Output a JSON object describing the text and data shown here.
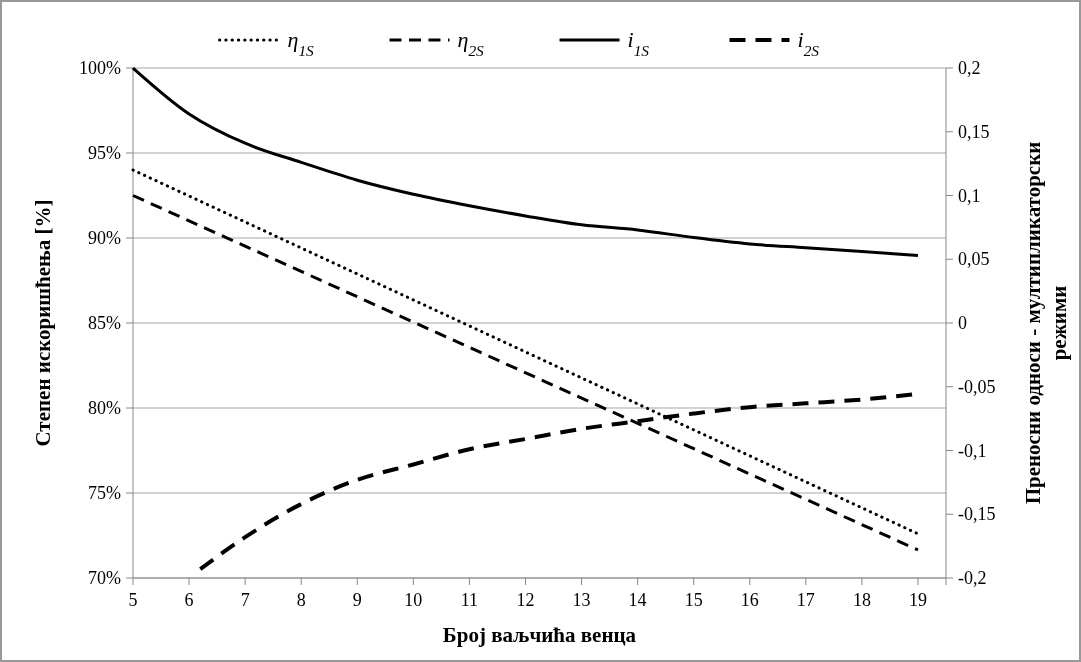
{
  "chart_data": {
    "type": "line",
    "xlabel": "Број ваљчића венца",
    "ylabel": "Степен искоришћења [%]",
    "y2label": "Преносни односи - мултипликаторски режими",
    "xlim": [
      5,
      19.5
    ],
    "xticks": [
      5,
      6,
      7,
      8,
      9,
      10,
      11,
      12,
      13,
      14,
      15,
      16,
      17,
      18,
      19,
      {
        "value": 19.5,
        "label": null
      }
    ],
    "ylim": [
      70,
      100
    ],
    "yticks": [
      {
        "value": 70,
        "label": "70%"
      },
      {
        "value": 75,
        "label": "75%"
      },
      {
        "value": 80,
        "label": "80%"
      },
      {
        "value": 85,
        "label": "85%"
      },
      {
        "value": 90,
        "label": "90%"
      },
      {
        "value": 95,
        "label": "95%"
      },
      {
        "value": 100,
        "label": "100%"
      }
    ],
    "y2lim": [
      -0.2,
      0.2
    ],
    "y2ticks": [
      {
        "value": -0.2,
        "label": "-0,2"
      },
      {
        "value": -0.15,
        "label": "-0,15"
      },
      {
        "value": -0.1,
        "label": "-0,1"
      },
      {
        "value": -0.05,
        "label": "-0,05"
      },
      {
        "value": 0,
        "label": "0"
      },
      {
        "value": 0.05,
        "label": "0,05"
      },
      {
        "value": 0.1,
        "label": "0,1"
      },
      {
        "value": 0.15,
        "label": "0,15"
      },
      {
        "value": 0.2,
        "label": "0,2"
      }
    ],
    "grid": "y",
    "legend": "top",
    "series": [
      {
        "name": "η$_{1S}$",
        "color": "#000000",
        "line_style": "dotted",
        "x": [
          5,
          19
        ],
        "values": [
          94,
          72.6
        ]
      },
      {
        "name": "η$_{2S}$",
        "color": "#000000",
        "line_style": "dashed",
        "x": [
          5,
          19
        ],
        "values": [
          92.5,
          71.65
        ]
      },
      {
        "name": "i$_{1S}$",
        "color": "#000000",
        "line_style": "solid",
        "axis": "y2",
        "x": [
          5,
          6,
          7,
          8,
          9,
          10,
          11,
          12,
          13,
          14,
          15,
          16,
          17,
          18,
          19
        ],
        "values": [
          0.2,
          0.164,
          0.141,
          0.126,
          0.112,
          0.101,
          0.092,
          0.084,
          0.077,
          0.073,
          0.067,
          0.062,
          0.059,
          0.056,
          0.053
        ]
      },
      {
        "name": "i$_{2S}$",
        "color": "#000000",
        "line_style": "dashed",
        "axis": "y2",
        "x": [
          6.2,
          7,
          8,
          9,
          10,
          11,
          12,
          13,
          14,
          15,
          16,
          17,
          18,
          18.9
        ],
        "values": [
          -0.193,
          -0.168,
          -0.142,
          -0.123,
          -0.111,
          -0.099,
          -0.091,
          -0.083,
          -0.077,
          -0.071,
          -0.066,
          -0.063,
          -0.06,
          -0.056
        ]
      }
    ]
  }
}
